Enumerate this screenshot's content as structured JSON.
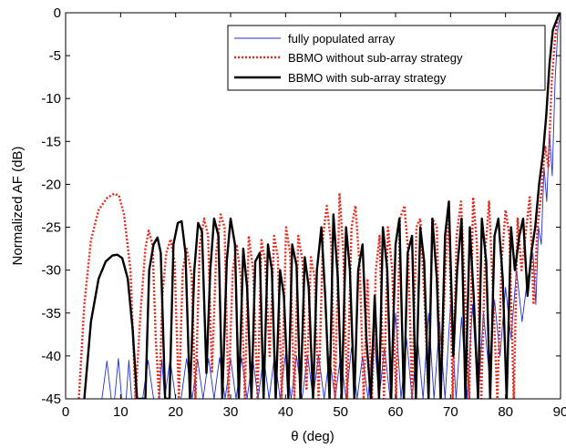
{
  "chart_data": {
    "type": "line",
    "xlabel": "θ (deg)",
    "ylabel": "Normalized AF (dB)",
    "xlim": [
      0,
      90
    ],
    "ylim": [
      -45,
      0
    ],
    "xticks": [
      0,
      10,
      20,
      30,
      40,
      50,
      60,
      70,
      80,
      90
    ],
    "yticks": [
      0,
      -5,
      -10,
      -15,
      -20,
      -25,
      -30,
      -35,
      -40,
      -45
    ],
    "grid": false,
    "legend_position": "top-right",
    "series": [
      {
        "name": "fully populated array",
        "style": "thin-solid",
        "color": "#1f2fd6",
        "x": [
          6.6,
          7.5,
          8.3,
          8.9,
          9.6,
          10.2,
          11.0,
          11.5,
          12.0,
          13.0,
          14.0,
          15.0,
          16.0,
          17.0,
          17.5,
          18.0,
          19.0,
          20.0,
          21.0,
          22.0,
          23.0,
          24.0,
          25.0,
          26.0,
          27.0,
          28.0,
          29.0,
          30.0,
          31.0,
          32.0,
          33.0,
          34.0,
          35.0,
          36.0,
          37.0,
          38.0,
          39.0,
          40.0,
          41.0,
          42.0,
          43.0,
          44.0,
          45.0,
          46.0,
          47.0,
          48.0,
          49.0,
          50.0,
          51.0,
          52.0,
          53.0,
          54.0,
          55.0,
          56.0,
          57.0,
          58.0,
          59.0,
          60.0,
          61.0,
          62.0,
          63.0,
          64.0,
          65.0,
          66.0,
          67.0,
          68.0,
          69.0,
          70.0,
          71.0,
          72.0,
          73.0,
          74.0,
          75.0,
          76.0,
          77.0,
          78.0,
          79.0,
          80.0,
          81.0,
          82.0,
          83.0,
          84.0,
          85.0,
          85.5,
          86.0,
          86.5,
          87.0,
          87.5,
          88.0,
          88.5,
          89.0,
          89.5,
          90.0
        ],
        "y": [
          -45.0,
          -40.6,
          -45.0,
          -45.0,
          -40.3,
          -45.0,
          -45.0,
          -40.5,
          -45.0,
          -45.0,
          -45.0,
          -40.5,
          -45.0,
          -45.0,
          -40.4,
          -45.0,
          -40.4,
          -45.0,
          -45.0,
          -40.3,
          -45.0,
          -40.4,
          -45.0,
          -40.3,
          -45.0,
          -40.2,
          -45.0,
          -40.3,
          -45.0,
          -40.2,
          -45.0,
          -40.1,
          -45.0,
          -40.0,
          -45.0,
          -39.9,
          -45.0,
          -39.8,
          -45.0,
          -40.0,
          -45.0,
          -39.9,
          -45.0,
          -39.9,
          -45.0,
          -40.0,
          -45.0,
          -40.0,
          -45.0,
          -39.0,
          -45.0,
          -40.0,
          -45.0,
          -37.0,
          -45.0,
          -39.0,
          -45.0,
          -35.0,
          -45.0,
          -38.0,
          -45.0,
          -38.0,
          -45.0,
          -35.0,
          -45.0,
          -36.0,
          -45.0,
          -34.0,
          -45.0,
          -35.5,
          -45.0,
          -34.0,
          -45.0,
          -35.0,
          -42.0,
          -33.5,
          -40.0,
          -32.0,
          -38.0,
          -30.0,
          -36.0,
          -31.0,
          -28.0,
          -34.0,
          -25.0,
          -27.0,
          -18.0,
          -22.0,
          -14.0,
          -19.0,
          -8.0,
          -2.0,
          0.0
        ]
      },
      {
        "name": "BBMO without sub-array strategy",
        "style": "dotted",
        "color": "#e8291c",
        "x": [
          2.4,
          3.4,
          4.6,
          6.0,
          7.5,
          8.8,
          9.7,
          10.6,
          11.8,
          12.7,
          13.6,
          14.5,
          15.1,
          15.8,
          16.4,
          17.0,
          17.6,
          18.3,
          19.1,
          19.8,
          20.6,
          21.3,
          22.0,
          22.9,
          23.6,
          24.4,
          25.2,
          25.9,
          26.6,
          27.4,
          28.2,
          28.9,
          29.6,
          30.4,
          31.1,
          31.9,
          32.6,
          33.3,
          34.1,
          34.9,
          35.6,
          36.3,
          37.1,
          37.9,
          38.6,
          39.3,
          40.1,
          40.8,
          41.6,
          42.3,
          43.1,
          43.8,
          44.6,
          45.3,
          46.0,
          46.8,
          47.5,
          48.3,
          49.0,
          49.8,
          50.5,
          51.2,
          52.0,
          52.7,
          53.5,
          54.2,
          54.9,
          55.7,
          56.4,
          57.1,
          57.9,
          58.6,
          59.4,
          60.1,
          60.8,
          61.6,
          62.3,
          63.0,
          63.8,
          64.5,
          65.3,
          66.0,
          66.7,
          67.5,
          68.2,
          69.0,
          69.7,
          70.4,
          71.1,
          71.9,
          72.6,
          73.4,
          74.1,
          74.8,
          75.6,
          76.3,
          77.0,
          77.8,
          78.5,
          79.3,
          80.0,
          80.7,
          81.5,
          82.2,
          82.9,
          83.6,
          84.4,
          85.1,
          85.8,
          86.5,
          87.2,
          87.8,
          88.4,
          89.0,
          89.5,
          90.0
        ],
        "y": [
          -45.0,
          -34.0,
          -26.5,
          -23.0,
          -21.6,
          -21.1,
          -21.3,
          -23.5,
          -30.0,
          -45.0,
          -35.0,
          -27.5,
          -25.4,
          -27.0,
          -38.0,
          -45.0,
          -33.0,
          -28.0,
          -26.4,
          -29.0,
          -45.0,
          -30.0,
          -27.5,
          -30.5,
          -45.0,
          -27.0,
          -24.0,
          -26.0,
          -42.0,
          -28.0,
          -23.5,
          -25.0,
          -45.0,
          -30.0,
          -27.0,
          -31.0,
          -45.0,
          -26.0,
          -30.0,
          -45.0,
          -26.5,
          -29.0,
          -40.0,
          -26.0,
          -28.5,
          -45.0,
          -25.0,
          -28.0,
          -45.0,
          -26.0,
          -29.0,
          -44.0,
          -28.5,
          -31.0,
          -45.0,
          -26.0,
          -22.5,
          -27.0,
          -45.0,
          -21.0,
          -28.0,
          -45.0,
          -25.0,
          -22.5,
          -30.0,
          -45.0,
          -31.0,
          -45.0,
          -30.0,
          -26.0,
          -45.0,
          -25.0,
          -30.0,
          -45.0,
          -24.0,
          -22.5,
          -28.0,
          -45.0,
          -25.0,
          -24.0,
          -34.0,
          -45.0,
          -24.0,
          -25.0,
          -45.0,
          -31.0,
          -23.0,
          -45.0,
          -26.0,
          -22.0,
          -32.0,
          -45.0,
          -21.5,
          -27.0,
          -45.0,
          -28.0,
          -22.0,
          -34.0,
          -45.0,
          -29.0,
          -23.0,
          -26.0,
          -45.0,
          -24.0,
          -30.0,
          -26.0,
          -21.5,
          -34.0,
          -25.0,
          -21.0,
          -15.5,
          -18.0,
          -8.0,
          -3.0,
          -0.5,
          0.0
        ]
      },
      {
        "name": "BBMO with sub-array strategy",
        "style": "thick-solid",
        "color": "#000000",
        "x": [
          3.4,
          4.6,
          6.0,
          7.3,
          8.5,
          9.4,
          10.3,
          11.3,
          12.2,
          13.0,
          14.5,
          15.2,
          16.0,
          16.7,
          17.3,
          18.1,
          18.9,
          19.6,
          20.4,
          21.1,
          21.8,
          22.6,
          23.4,
          24.1,
          24.8,
          25.6,
          26.3,
          27.0,
          27.8,
          28.5,
          29.3,
          30.0,
          30.8,
          31.5,
          32.3,
          33.0,
          33.8,
          34.5,
          35.3,
          36.0,
          36.8,
          37.5,
          38.2,
          39.0,
          39.7,
          40.5,
          41.2,
          42.0,
          42.7,
          43.5,
          44.2,
          45.0,
          45.7,
          46.5,
          47.2,
          48.0,
          48.7,
          49.5,
          50.2,
          51.0,
          51.7,
          52.5,
          53.2,
          54.0,
          54.7,
          55.5,
          56.2,
          57.0,
          57.7,
          58.5,
          59.2,
          60.0,
          60.7,
          61.5,
          62.2,
          63.0,
          63.7,
          64.5,
          65.2,
          66.0,
          66.7,
          67.5,
          68.2,
          69.0,
          69.7,
          70.5,
          71.2,
          72.0,
          72.7,
          73.5,
          74.2,
          75.0,
          75.7,
          76.5,
          77.2,
          78.0,
          78.7,
          79.5,
          80.2,
          81.0,
          81.7,
          82.5,
          83.2,
          84.0,
          84.7,
          85.4,
          86.1,
          86.8,
          87.4,
          88.0,
          88.6,
          89.2,
          89.6,
          90.0
        ],
        "y": [
          -45.0,
          -36.0,
          -31.0,
          -29.0,
          -28.3,
          -28.2,
          -28.6,
          -31.0,
          -37.0,
          -45.0,
          -45.0,
          -30.0,
          -27.0,
          -26.2,
          -28.0,
          -45.0,
          -45.0,
          -27.0,
          -24.5,
          -24.3,
          -28.0,
          -45.0,
          -30.0,
          -24.5,
          -25.5,
          -42.0,
          -30.0,
          -24.0,
          -26.0,
          -45.0,
          -29.0,
          -24.0,
          -27.0,
          -45.0,
          -27.5,
          -32.0,
          -45.0,
          -29.0,
          -28.0,
          -45.0,
          -27.0,
          -30.0,
          -45.0,
          -30.0,
          -33.0,
          -45.0,
          -27.0,
          -29.5,
          -45.0,
          -28.5,
          -32.0,
          -45.0,
          -30.0,
          -25.0,
          -33.0,
          -45.0,
          -23.5,
          -31.0,
          -45.0,
          -25.0,
          -30.0,
          -45.0,
          -30.0,
          -27.0,
          -38.0,
          -45.0,
          -33.0,
          -45.0,
          -25.0,
          -30.0,
          -45.0,
          -27.0,
          -24.0,
          -45.0,
          -28.0,
          -26.0,
          -45.0,
          -25.0,
          -29.0,
          -45.0,
          -24.0,
          -31.0,
          -45.0,
          -26.0,
          -22.0,
          -40.0,
          -30.0,
          -24.0,
          -45.0,
          -25.0,
          -33.0,
          -45.0,
          -24.0,
          -29.0,
          -45.0,
          -26.0,
          -24.0,
          -31.0,
          -45.0,
          -25.0,
          -30.0,
          -26.0,
          -24.0,
          -33.0,
          -28.0,
          -25.0,
          -20.0,
          -16.5,
          -12.0,
          -6.0,
          -2.0,
          -1.0,
          -0.3,
          0.0
        ]
      }
    ]
  }
}
